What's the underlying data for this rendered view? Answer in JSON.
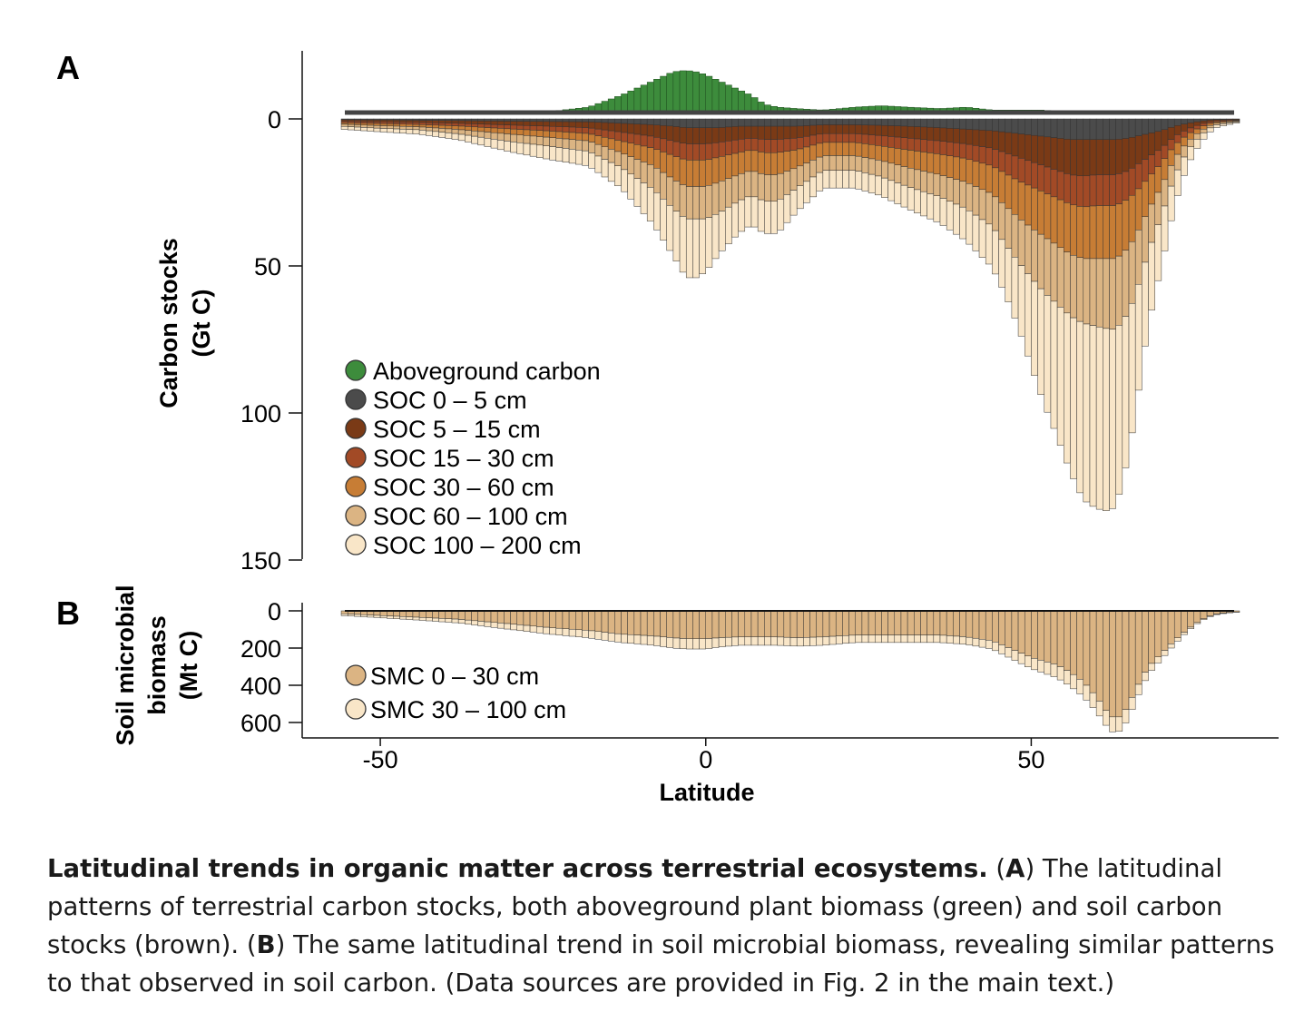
{
  "chart_data": [
    {
      "panel_label": "A",
      "type": "bar",
      "ylabel_line1": "Carbon stocks",
      "ylabel_line2": "(Gt C)",
      "yticks": [
        0,
        50,
        100,
        150
      ],
      "ylim": [
        -22,
        150
      ],
      "y_inverted": true,
      "aboveground_height_note": "aboveground carbon plotted upward from 0",
      "x_knots": [
        -56,
        -50,
        -44,
        -38,
        -30,
        -24,
        -18,
        -13,
        -8,
        -5,
        -3,
        -1.5,
        0,
        2,
        5,
        7,
        9,
        11,
        14,
        18,
        23,
        27,
        31,
        36,
        40,
        44,
        46,
        48,
        50,
        52,
        54,
        56,
        58,
        60,
        62,
        63,
        64,
        65,
        66,
        67,
        68,
        70,
        72,
        74,
        76,
        78,
        80,
        82
      ],
      "series": [
        {
          "name": "Aboveground carbon",
          "color": "#3d8c3c",
          "direction": "up",
          "values": [
            0.5,
            0.8,
            1,
            1.5,
            2,
            2.5,
            4,
            8,
            13,
            16,
            16.5,
            16,
            15,
            13,
            10,
            8,
            5,
            4,
            3.5,
            3,
            4,
            4.5,
            4,
            3.5,
            4,
            3,
            3,
            3,
            3,
            3,
            2.5,
            2.5,
            2.5,
            2.5,
            2.5,
            2.5,
            2.5,
            2.2,
            2,
            1.8,
            1.5,
            1,
            0.5,
            0.3,
            0,
            0,
            0,
            0
          ]
        },
        {
          "name": "SOC 0 – 5 cm",
          "color": "#4b4b4b",
          "values": [
            0.3,
            0.4,
            0.5,
            0.6,
            0.8,
            0.9,
            1,
            1.5,
            2,
            2.5,
            3,
            3,
            3,
            3,
            2.5,
            2.5,
            2.5,
            2.5,
            2.5,
            2,
            2,
            2.2,
            2.5,
            3,
            3.5,
            4,
            4.5,
            5,
            5.5,
            6,
            6.5,
            7,
            7,
            7,
            7,
            7,
            6.8,
            6.5,
            6,
            5.5,
            5,
            4,
            2.5,
            1.5,
            0.8,
            0.3,
            0.2,
            0.1
          ]
        },
        {
          "name": "SOC 5 – 15 cm",
          "color": "#7a3a16",
          "values": [
            0.5,
            0.6,
            0.7,
            0.9,
            1.3,
            1.6,
            2,
            3,
            4,
            5,
            5.5,
            5.5,
            5.5,
            5,
            4.5,
            4,
            4.5,
            4.5,
            4,
            3,
            3,
            3.5,
            4,
            4.5,
            5,
            6,
            7,
            8,
            9,
            10,
            11,
            12,
            12.5,
            12,
            12,
            12,
            11.5,
            11,
            10,
            9,
            8,
            6,
            3.5,
            2,
            1,
            0.4,
            0.3,
            0.2
          ]
        },
        {
          "name": "SOC 15 – 30 cm",
          "color": "#a24a26",
          "values": [
            0.5,
            0.6,
            0.7,
            0.9,
            1.3,
            1.6,
            2,
            3,
            4,
            5,
            5.5,
            5.5,
            5.5,
            5,
            4.5,
            4,
            4.5,
            4.5,
            4,
            3,
            3,
            3.5,
            4,
            4.5,
            5,
            6,
            7,
            8,
            8.5,
            9,
            9.5,
            10,
            10.5,
            10.5,
            10.5,
            10.5,
            10,
            9.5,
            9,
            8,
            7,
            5,
            3,
            1.8,
            1,
            0.4,
            0.3,
            0.2
          ]
        },
        {
          "name": "SOC 30 – 60 cm",
          "color": "#c77d35",
          "values": [
            0.5,
            0.7,
            0.8,
            1.2,
            1.8,
            2.2,
            2.5,
            4,
            6,
            8,
            9,
            9,
            9,
            8.5,
            7.5,
            7,
            7.5,
            7.5,
            6,
            4.5,
            4.5,
            5,
            6,
            7,
            8,
            9.5,
            11,
            12.5,
            14,
            15,
            16,
            17,
            17.5,
            18,
            18,
            18,
            17.5,
            16.5,
            15,
            13,
            11,
            8,
            4.5,
            2.5,
            1.3,
            0.5,
            0.3,
            0.2
          ]
        },
        {
          "name": "SOC 60 – 100 cm",
          "color": "#dbb483",
          "values": [
            0.7,
            0.9,
            1,
            1.5,
            2.5,
            3,
            3.5,
            5,
            8,
            10,
            11,
            11,
            11,
            10.5,
            9,
            8.5,
            9,
            9,
            7,
            5,
            5,
            5.5,
            6.5,
            7.5,
            9,
            11,
            13,
            15,
            17,
            19,
            20,
            21,
            22,
            23,
            24,
            24,
            23,
            22,
            20,
            17,
            14,
            10,
            6,
            3,
            1.5,
            0.6,
            0.4,
            0.2
          ]
        },
        {
          "name": "SOC 100 – 200 cm",
          "color": "#f9e6c8",
          "values": [
            1,
            1.2,
            1.5,
            2,
            3.5,
            4.5,
            5,
            7,
            12,
            16,
            20,
            20,
            18,
            14,
            11,
            10,
            11,
            11,
            8,
            6,
            6,
            6.5,
            7.5,
            9,
            11,
            14,
            17,
            22,
            30,
            38,
            45,
            53,
            60,
            62,
            62,
            60,
            55,
            48,
            40,
            32,
            25,
            17,
            10,
            5,
            2.5,
            1,
            0.6,
            0.3
          ]
        }
      ]
    },
    {
      "panel_label": "B",
      "type": "bar",
      "ylabel_line1": "Soil microbial",
      "ylabel_line2": "biomass",
      "ylabel_line3": "(Mt C)",
      "yticks": [
        0,
        200,
        400,
        600
      ],
      "ylim": [
        0,
        690
      ],
      "y_inverted": true,
      "x_knots": [
        -56,
        -50,
        -44,
        -38,
        -30,
        -24,
        -18,
        -13,
        -8,
        -5,
        -3,
        -1.5,
        0,
        2,
        5,
        7,
        9,
        11,
        14,
        18,
        23,
        27,
        31,
        36,
        40,
        44,
        46,
        48,
        50,
        52,
        54,
        56,
        58,
        60,
        62,
        63,
        64,
        65,
        66,
        67,
        68,
        70,
        72,
        74,
        76,
        78,
        80,
        82
      ],
      "series": [
        {
          "name": "SMC 0 – 30 cm",
          "color": "#dbb483",
          "values": [
            15,
            25,
            35,
            45,
            70,
            90,
            105,
            125,
            135,
            145,
            150,
            150,
            150,
            145,
            140,
            140,
            140,
            140,
            145,
            140,
            130,
            130,
            130,
            130,
            140,
            160,
            190,
            220,
            250,
            270,
            290,
            330,
            380,
            460,
            560,
            580,
            560,
            500,
            430,
            360,
            300,
            230,
            160,
            100,
            50,
            20,
            10,
            5
          ]
        },
        {
          "name": "SMC 30 – 100 cm",
          "color": "#f9e6c8",
          "values": [
            10,
            12,
            15,
            20,
            30,
            35,
            40,
            45,
            50,
            55,
            55,
            55,
            55,
            50,
            45,
            45,
            45,
            45,
            45,
            45,
            40,
            40,
            40,
            40,
            40,
            45,
            50,
            55,
            60,
            65,
            70,
            75,
            80,
            80,
            80,
            80,
            75,
            70,
            60,
            50,
            40,
            30,
            20,
            10,
            5,
            3,
            2,
            1
          ]
        }
      ],
      "xlabel": "Latitude",
      "xticks": [
        -50,
        0,
        50
      ],
      "xlim": [
        -62,
        88
      ]
    }
  ],
  "caption": {
    "title": "Latitudinal trends in organic matter across terrestrial ecosystems.",
    "part1_open": " (",
    "label_a": "A",
    "part1_text": ") The latitudinal patterns of terrestrial carbon stocks, both aboveground plant biomass (green) and soil carbon stocks (brown). (",
    "label_b": "B",
    "part2_text": ") The same latitudinal trend in soil microbial biomass, revealing similar patterns to that observed in soil carbon. (Data sources are provided in Fig. 2 in the main text.)"
  }
}
